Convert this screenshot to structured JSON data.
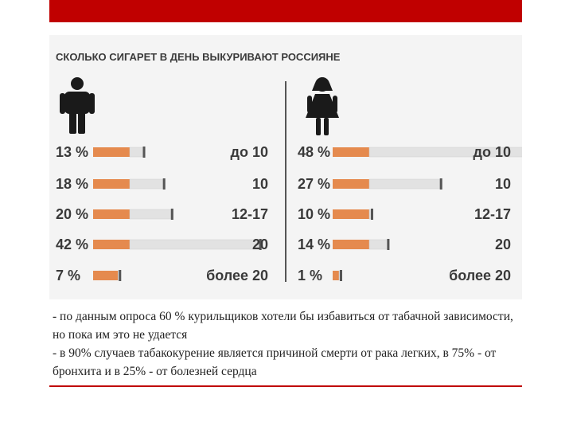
{
  "chart_data": {
    "type": "bar",
    "title": "СКОЛЬКО СИГАРЕТ В ДЕНЬ ВЫКУРИВАЮТ РОССИЯНЕ",
    "categories": [
      "до 10",
      "10",
      "12-17",
      "20",
      "более 20"
    ],
    "series": [
      {
        "name": "",
        "icon": "man-icon",
        "values": [
          13,
          18,
          20,
          42,
          7
        ],
        "labels": [
          "13 %",
          "18 %",
          "20 %",
          "42 %",
          "7 %"
        ]
      },
      {
        "name": "",
        "icon": "woman-icon",
        "values": [
          48,
          27,
          10,
          14,
          1
        ],
        "labels": [
          "48 %",
          "27 %",
          "10 %",
          "14 %",
          "1 %"
        ]
      }
    ],
    "ylim": [
      0,
      50
    ],
    "colors": {
      "filter": "#e58a4e",
      "paper": "#e2e2e2",
      "ash": "#555555",
      "text": "#3a3a3a"
    }
  },
  "caption": {
    "line1": "-  по данным опроса 60 % курильщиков хотели бы избавиться от табачной зависимости, но пока им это не удается",
    "line2": "-  в 90% случаев табакокурение является причиной смерти от  рака легких, в 75% - от бронхита и в 25% - от болезней сердца"
  }
}
